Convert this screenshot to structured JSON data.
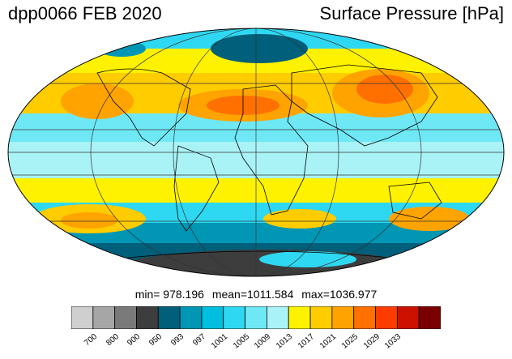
{
  "header": {
    "left_title": "dpp0066 FEB 2020",
    "right_title": "Surface Pressure [hPa]"
  },
  "stats": {
    "min": "min= 978.196",
    "mean": "mean=1011.584",
    "max": "max=1036.977"
  },
  "colorbar": {
    "colors": [
      "#cfcfcf",
      "#a6a6a6",
      "#7a7a7a",
      "#3d3d3d",
      "#005f7a",
      "#0096b4",
      "#00bede",
      "#2ed8f2",
      "#6fe8f6",
      "#a9f3f6",
      "#fff200",
      "#ffcc00",
      "#ffa300",
      "#ff7000",
      "#ff3c00",
      "#cc1100",
      "#7a0000"
    ],
    "labels": [
      "700",
      "800",
      "900",
      "950",
      "993",
      "997",
      "1001",
      "1005",
      "1009",
      "1013",
      "1017",
      "1021",
      "1025",
      "1029",
      "1033"
    ]
  },
  "map": {
    "projection": "Mollweide",
    "colors": {
      "ocean_tropical": "#a9f3f6",
      "mid": "#2ed8f2",
      "high_yellow": "#fff200",
      "high_orange": "#ffa300",
      "high_red": "#ff7000",
      "low_dark": "#005f7a",
      "low_darkest": "#3d3d3d"
    }
  }
}
